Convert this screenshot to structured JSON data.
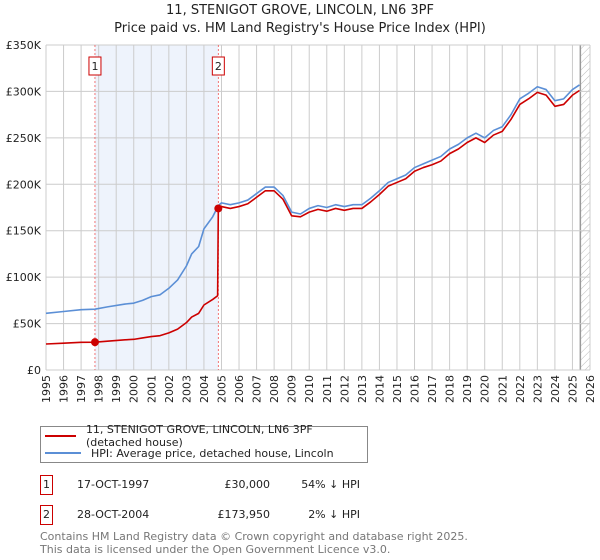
{
  "chart_data": {
    "type": "line",
    "title": "11, STENIGOT GROVE, LINCOLN, LN6 3PF",
    "subtitle": "Price paid vs. HM Land Registry's House Price Index (HPI)",
    "xlim": [
      1995,
      2026
    ],
    "ylim": [
      0,
      350000
    ],
    "x_ticks": [
      "1995",
      "1996",
      "1997",
      "1998",
      "1999",
      "2000",
      "2001",
      "2002",
      "2003",
      "2004",
      "2005",
      "2006",
      "2007",
      "2008",
      "2009",
      "2010",
      "2011",
      "2012",
      "2013",
      "2014",
      "2015",
      "2016",
      "2017",
      "2018",
      "2019",
      "2020",
      "2021",
      "2022",
      "2023",
      "2024",
      "2025",
      "2026"
    ],
    "y_ticks": [
      {
        "v": 0,
        "label": "£0"
      },
      {
        "v": 50000,
        "label": "£50K"
      },
      {
        "v": 100000,
        "label": "£100K"
      },
      {
        "v": 150000,
        "label": "£150K"
      },
      {
        "v": 200000,
        "label": "£200K"
      },
      {
        "v": 250000,
        "label": "£250K"
      },
      {
        "v": 300000,
        "label": "£300K"
      },
      {
        "v": 350000,
        "label": "£350K"
      }
    ],
    "grid": true,
    "shaded_range": [
      1997.79,
      2004.82
    ],
    "forecast_hatch_from": 2025.45,
    "series": [
      {
        "name": "11, STENIGOT GROVE, LINCOLN, LN6 3PF (detached house)",
        "color": "#cc0000",
        "x": [
          1995,
          1996,
          1997,
          1997.79,
          1998.5,
          1999.5,
          2000,
          2000.5,
          2001,
          2001.5,
          2002,
          2002.5,
          2003,
          2003.3,
          2003.7,
          2004,
          2004.5,
          2004.78,
          2004.82,
          2005,
          2005.5,
          2006,
          2006.5,
          2007,
          2007.5,
          2008,
          2008.5,
          2009,
          2009.5,
          2010,
          2010.5,
          2011,
          2011.5,
          2012,
          2012.5,
          2013,
          2013.5,
          2014,
          2014.5,
          2015,
          2015.5,
          2016,
          2016.5,
          2017,
          2017.5,
          2018,
          2018.5,
          2019,
          2019.5,
          2020,
          2020.5,
          2021,
          2021.5,
          2022,
          2022.5,
          2023,
          2023.5,
          2024,
          2024.5,
          2025,
          2025.4
        ],
        "y": [
          28000,
          28900,
          29800,
          30000,
          31000,
          32500,
          33000,
          34500,
          36000,
          37000,
          40000,
          44000,
          51000,
          57000,
          61000,
          70000,
          76000,
          80000,
          173950,
          176000,
          174000,
          176000,
          179000,
          186000,
          193000,
          193000,
          184000,
          166000,
          165000,
          170000,
          173000,
          171000,
          174000,
          172000,
          174000,
          174000,
          181000,
          189000,
          198000,
          202000,
          206000,
          214000,
          218000,
          221000,
          225000,
          233000,
          238000,
          245000,
          250000,
          245000,
          253000,
          257000,
          270000,
          286000,
          292000,
          299000,
          296000,
          284000,
          286000,
          296000,
          301000
        ]
      },
      {
        "name": "HPI: Average price, detached house, Lincoln",
        "color": "#5b8fd6",
        "x": [
          1995,
          1996,
          1997,
          1997.79,
          1998.5,
          1999.5,
          2000,
          2000.5,
          2001,
          2001.5,
          2002,
          2002.5,
          2003,
          2003.3,
          2003.7,
          2004,
          2004.5,
          2004.82,
          2005,
          2005.5,
          2006,
          2006.5,
          2007,
          2007.5,
          2008,
          2008.5,
          2009,
          2009.5,
          2010,
          2010.5,
          2011,
          2011.5,
          2012,
          2012.5,
          2013,
          2013.5,
          2014,
          2014.5,
          2015,
          2015.5,
          2016,
          2016.5,
          2017,
          2017.5,
          2018,
          2018.5,
          2019,
          2019.5,
          2020,
          2020.5,
          2021,
          2021.5,
          2022,
          2022.5,
          2023,
          2023.5,
          2024,
          2024.5,
          2025,
          2025.4
        ],
        "y": [
          61000,
          63000,
          65000,
          65500,
          68000,
          71000,
          72000,
          75000,
          79000,
          81000,
          88000,
          97000,
          112000,
          125000,
          133000,
          152000,
          165000,
          177000,
          180000,
          178000,
          180000,
          183000,
          190000,
          197000,
          197000,
          188000,
          170000,
          168000,
          174000,
          177000,
          175000,
          178000,
          176000,
          178000,
          178000,
          185000,
          193000,
          202000,
          206000,
          210000,
          218000,
          222000,
          226000,
          230000,
          238000,
          243000,
          250000,
          255000,
          250000,
          258000,
          262000,
          275000,
          292000,
          298000,
          305000,
          302000,
          290000,
          292000,
          302000,
          307000
        ]
      }
    ],
    "sales": [
      {
        "label": "1",
        "x": 1997.79,
        "y": 30000
      },
      {
        "label": "2",
        "x": 2004.82,
        "y": 173950
      }
    ]
  },
  "legend": {
    "items": [
      "11, STENIGOT GROVE, LINCOLN, LN6 3PF (detached house)",
      "HPI: Average price, detached house, Lincoln"
    ]
  },
  "transactions": [
    {
      "num": "1",
      "date": "17-OCT-1997",
      "price": "£30,000",
      "hpi": "54% ↓ HPI"
    },
    {
      "num": "2",
      "date": "28-OCT-2004",
      "price": "£173,950",
      "hpi": "2% ↓ HPI"
    }
  ],
  "footer": {
    "line1": "Contains HM Land Registry data © Crown copyright and database right 2025.",
    "line2": "This data is licensed under the Open Government Licence v3.0."
  },
  "colors": {
    "price": "#cc0000",
    "hpi": "#5b8fd6",
    "shade": "#eef3fc"
  }
}
